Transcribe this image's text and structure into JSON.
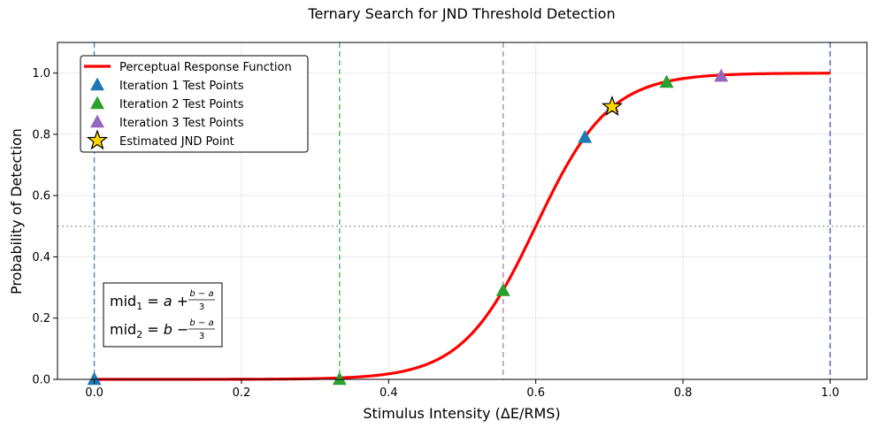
{
  "chart_data": {
    "type": "line",
    "title": "Ternary Search for JND Threshold Detection",
    "xlabel": "Stimulus Intensity (ΔE/RMS)",
    "ylabel": "Probability of Detection",
    "xlim": [
      -0.05,
      1.05
    ],
    "ylim": [
      0.0,
      1.1
    ],
    "xticks": [
      0.0,
      0.2,
      0.4,
      0.6,
      0.8,
      1.0
    ],
    "xtick_labels": [
      "0.0",
      "0.2",
      "0.4",
      "0.6",
      "0.8",
      "1.0"
    ],
    "yticks": [
      0.0,
      0.2,
      0.4,
      0.6,
      0.8,
      1.0
    ],
    "ytick_labels": [
      "0.0",
      "0.2",
      "0.4",
      "0.6",
      "0.8",
      "1.0"
    ],
    "grid": true,
    "legend_position": "top-left",
    "curve": {
      "name": "Perceptual Response Function",
      "color": "#ff0000",
      "model": "logistic",
      "midpoint": 0.6,
      "slope": 20,
      "x_range": [
        0.0,
        1.0
      ]
    },
    "series": [
      {
        "name": "Iteration 1 Test Points",
        "color": "#1f77b4",
        "marker": "triangle",
        "x": [
          0.0,
          0.6667
        ],
        "y": [
          0.0,
          0.79
        ]
      },
      {
        "name": "Iteration 2 Test Points",
        "color": "#2ca02c",
        "marker": "triangle",
        "x": [
          0.3333,
          0.5556,
          0.7778
        ],
        "y": [
          0.0,
          0.29,
          0.97
        ]
      },
      {
        "name": "Iteration 3 Test Points",
        "color": "#9467bd",
        "marker": "triangle",
        "x": [
          0.7037,
          0.8519
        ],
        "y": [
          0.89,
          0.99
        ]
      },
      {
        "name": "Estimated JND Point",
        "color": "#ffd700",
        "marker": "star",
        "x": [
          0.7037
        ],
        "y": [
          0.89
        ]
      }
    ],
    "vlines": [
      {
        "x": 0.0,
        "color": "#1f77b4"
      },
      {
        "x": 0.3333,
        "color": "#2ca02c"
      },
      {
        "x": 0.5556,
        "color": "#9467bd"
      },
      {
        "x": 1.0,
        "color": "#1f3a93"
      }
    ],
    "hline": {
      "y": 0.5,
      "color": "#aaaaaa"
    },
    "annotation": {
      "line1": {
        "pre": "mid",
        "sub": "1",
        "mid": " = a + ",
        "num": "b − a",
        "den": "3"
      },
      "line2": {
        "pre": "mid",
        "sub": "2",
        "mid": " = b − ",
        "num": "b − a",
        "den": "3"
      }
    }
  }
}
